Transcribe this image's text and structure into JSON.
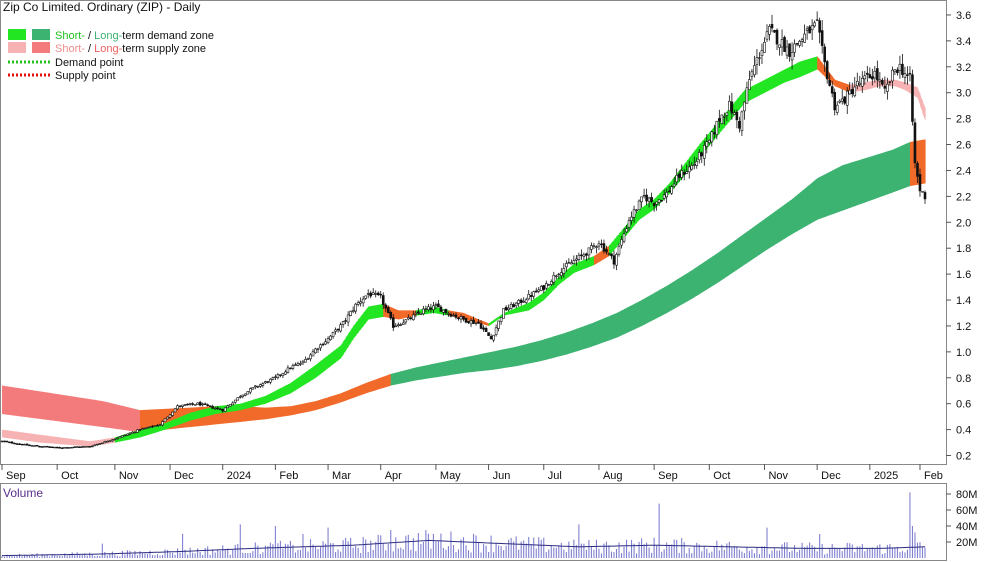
{
  "chart_data": {
    "type": "candlestick",
    "title": "Zip Co Limited. Ordinary (ZIP) - Daily",
    "legend": {
      "placement": "top-left",
      "demand_zone": {
        "short_text": "Short-",
        "sep": " / ",
        "long_text": "Long-",
        "rest": "term demand zone"
      },
      "supply_zone": {
        "short_text": "Short-",
        "sep": " / ",
        "long_text": "Long-",
        "rest": "term supply zone"
      },
      "demand_point": "Demand point",
      "supply_point": "Supply point"
    },
    "colors": {
      "short_demand": "#22e622",
      "long_demand": "#3cb371",
      "short_supply": "#f7b3b3",
      "long_supply": "#f47b7b",
      "breach": "#f26a2a",
      "candle": "#111111",
      "volume": "#8080d0",
      "volume_ma": "#2b2b80",
      "demand_point": "#22c022",
      "supply_point": "#e01010"
    },
    "x_axis": {
      "labels": [
        "Sep",
        "Oct",
        "Nov",
        "Dec",
        "2024",
        "Feb",
        "Mar",
        "Apr",
        "May",
        "Jun",
        "Jul",
        "Aug",
        "Sep",
        "Oct",
        "Nov",
        "Dec",
        "2025",
        "Feb"
      ],
      "positions_index": [
        0,
        22,
        45,
        67,
        88,
        109,
        130,
        151,
        173,
        194,
        216,
        238,
        260,
        282,
        304,
        325,
        346,
        366
      ]
    },
    "y_axis": {
      "scale": "linear",
      "ylim": [
        0.15,
        3.7
      ],
      "ticks": [
        0.2,
        0.4,
        0.6,
        0.8,
        1.0,
        1.2,
        1.4,
        1.6,
        1.8,
        2.0,
        2.2,
        2.4,
        2.6,
        2.8,
        3.0,
        3.2,
        3.4,
        3.6
      ],
      "tick_labels": [
        "0.2",
        "0.4",
        "0.6",
        "0.8",
        "1.0",
        "1.2",
        "1.4",
        "1.6",
        "1.8",
        "2.0",
        "2.2",
        "2.4",
        "2.6",
        "2.8",
        "3.0",
        "3.2",
        "3.4",
        "3.6"
      ]
    },
    "price_anchors": {
      "index": [
        0,
        10,
        22,
        35,
        45,
        55,
        63,
        70,
        78,
        88,
        95,
        100,
        109,
        115,
        120,
        125,
        130,
        136,
        141,
        146,
        151,
        156,
        162,
        168,
        173,
        178,
        184,
        190,
        195,
        200,
        206,
        212,
        216,
        222,
        228,
        234,
        238,
        244,
        250,
        256,
        260,
        265,
        270,
        276,
        282,
        286,
        290,
        294,
        298,
        302,
        306,
        310,
        314,
        318,
        322,
        325,
        328,
        332,
        336,
        340,
        344,
        348,
        352,
        356,
        358,
        362,
        364,
        366,
        368
      ],
      "close": [
        0.31,
        0.28,
        0.26,
        0.27,
        0.33,
        0.4,
        0.44,
        0.58,
        0.6,
        0.55,
        0.66,
        0.72,
        0.8,
        0.88,
        0.92,
        1.02,
        1.1,
        1.22,
        1.36,
        1.45,
        1.42,
        1.2,
        1.25,
        1.32,
        1.35,
        1.3,
        1.25,
        1.22,
        1.1,
        1.32,
        1.38,
        1.45,
        1.5,
        1.62,
        1.7,
        1.78,
        1.85,
        1.7,
        2.02,
        2.2,
        2.15,
        2.22,
        2.36,
        2.45,
        2.62,
        2.8,
        2.9,
        2.75,
        3.1,
        3.3,
        3.48,
        3.4,
        3.32,
        3.4,
        3.48,
        3.52,
        3.22,
        2.9,
        2.95,
        3.05,
        3.1,
        3.15,
        3.0,
        3.18,
        3.2,
        3.1,
        2.45,
        2.25,
        2.2
      ]
    },
    "short_zone_anchors": {
      "index": [
        0,
        15,
        35,
        45,
        55,
        65,
        75,
        85,
        95,
        105,
        115,
        125,
        135,
        140,
        146,
        152,
        158,
        165,
        172,
        178,
        184,
        190,
        194,
        200,
        210,
        216,
        222,
        228,
        236,
        242,
        248,
        254,
        260,
        266,
        272,
        278,
        284,
        290,
        296,
        300,
        306,
        312,
        318,
        325,
        332,
        338,
        344,
        350,
        356,
        360,
        365,
        368
      ],
      "lower": [
        0.34,
        0.3,
        0.27,
        0.3,
        0.34,
        0.4,
        0.47,
        0.52,
        0.55,
        0.6,
        0.68,
        0.8,
        0.95,
        1.1,
        1.25,
        1.27,
        1.25,
        1.28,
        1.3,
        1.28,
        1.25,
        1.22,
        1.2,
        1.28,
        1.32,
        1.4,
        1.52,
        1.61,
        1.67,
        1.74,
        1.88,
        2.02,
        2.1,
        2.22,
        2.36,
        2.5,
        2.64,
        2.78,
        2.92,
        2.96,
        3.02,
        3.08,
        3.12,
        3.18,
        3.05,
        3.0,
        3.02,
        3.05,
        3.05,
        3.02,
        2.96,
        2.78
      ],
      "upper": [
        0.4,
        0.36,
        0.31,
        0.34,
        0.4,
        0.45,
        0.53,
        0.58,
        0.6,
        0.66,
        0.76,
        0.9,
        1.05,
        1.2,
        1.35,
        1.37,
        1.32,
        1.32,
        1.35,
        1.32,
        1.3,
        1.25,
        1.22,
        1.3,
        1.38,
        1.46,
        1.58,
        1.68,
        1.74,
        1.82,
        1.96,
        2.1,
        2.18,
        2.3,
        2.45,
        2.6,
        2.74,
        2.88,
        3.02,
        3.06,
        3.12,
        3.18,
        3.24,
        3.28,
        3.1,
        3.06,
        3.08,
        3.1,
        3.1,
        3.08,
        3.04,
        2.88
      ],
      "type": [
        "supply",
        "supply",
        "supply",
        "demand",
        "demand",
        "demand",
        "demand",
        "demand",
        "demand",
        "demand",
        "demand",
        "demand",
        "demand",
        "demand",
        "demand",
        "breach",
        "breach",
        "demand",
        "demand",
        "breach",
        "breach",
        "breach",
        "demand",
        "demand",
        "demand",
        "demand",
        "demand",
        "demand",
        "breach",
        "demand",
        "demand",
        "demand",
        "demand",
        "demand",
        "demand",
        "demand",
        "demand",
        "demand",
        "demand",
        "demand",
        "demand",
        "demand",
        "demand",
        "breach",
        "breach",
        "supply",
        "supply",
        "supply",
        "supply",
        "supply",
        "supply",
        "supply"
      ]
    },
    "long_zone_anchors": {
      "index": [
        0,
        20,
        40,
        55,
        65,
        75,
        85,
        95,
        105,
        115,
        125,
        135,
        145,
        155,
        165,
        175,
        185,
        195,
        205,
        215,
        225,
        235,
        245,
        255,
        265,
        275,
        285,
        295,
        305,
        315,
        325,
        335,
        345,
        355,
        362,
        368
      ],
      "lower": [
        0.52,
        0.47,
        0.42,
        0.38,
        0.4,
        0.42,
        0.44,
        0.46,
        0.48,
        0.51,
        0.55,
        0.61,
        0.68,
        0.74,
        0.78,
        0.81,
        0.84,
        0.86,
        0.89,
        0.93,
        0.98,
        1.04,
        1.11,
        1.2,
        1.3,
        1.41,
        1.53,
        1.66,
        1.79,
        1.91,
        2.02,
        2.09,
        2.16,
        2.23,
        2.28,
        2.3
      ],
      "upper": [
        0.74,
        0.68,
        0.62,
        0.55,
        0.56,
        0.57,
        0.58,
        0.58,
        0.57,
        0.58,
        0.62,
        0.68,
        0.76,
        0.83,
        0.88,
        0.92,
        0.96,
        1.0,
        1.04,
        1.09,
        1.15,
        1.22,
        1.3,
        1.4,
        1.51,
        1.63,
        1.76,
        1.9,
        2.04,
        2.18,
        2.34,
        2.44,
        2.5,
        2.56,
        2.62,
        2.64
      ],
      "type": [
        "supply",
        "supply",
        "supply",
        "breach",
        "breach",
        "breach",
        "breach",
        "breach",
        "breach",
        "breach",
        "breach",
        "breach",
        "breach",
        "demand",
        "demand",
        "demand",
        "demand",
        "demand",
        "demand",
        "demand",
        "demand",
        "demand",
        "demand",
        "demand",
        "demand",
        "demand",
        "demand",
        "demand",
        "demand",
        "demand",
        "demand",
        "demand",
        "demand",
        "demand",
        "breach",
        "breach"
      ]
    },
    "volume": {
      "title": "Volume",
      "ylim": [
        0,
        90
      ],
      "ticks": [
        20,
        40,
        60,
        80
      ],
      "tick_labels": [
        "20M",
        "40M",
        "60M",
        "80M"
      ],
      "ma_anchors": {
        "index": [
          0,
          40,
          70,
          100,
          140,
          170,
          200,
          230,
          260,
          290,
          320,
          350,
          368
        ],
        "value": [
          3,
          5,
          8,
          12,
          16,
          22,
          18,
          14,
          16,
          14,
          12,
          12,
          14
        ]
      },
      "spikes": {
        "index": [
          40,
          72,
          95,
          109,
          120,
          130,
          155,
          172,
          195,
          230,
          262,
          305,
          326,
          362,
          363,
          364
        ],
        "value": [
          18,
          30,
          42,
          40,
          30,
          38,
          35,
          30,
          28,
          42,
          68,
          38,
          30,
          82,
          40,
          32
        ]
      }
    }
  }
}
